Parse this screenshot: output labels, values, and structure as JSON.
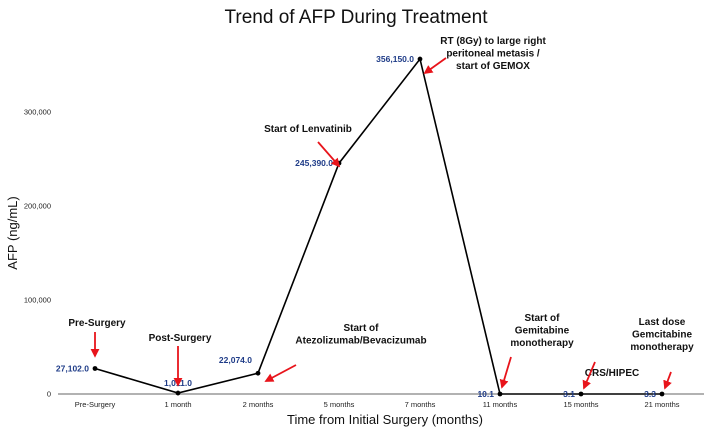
{
  "chart_data": {
    "type": "line",
    "title": "Trend of AFP During Treatment",
    "xlabel": "Time from Initial Surgery (months)",
    "ylabel": "AFP (ng/mL)",
    "ylim": [
      0,
      370000
    ],
    "yticks": [
      0,
      100000,
      200000,
      300000
    ],
    "ytick_labels": [
      "0",
      "100,000",
      "200,000",
      "300,000"
    ],
    "grid": false,
    "categories": [
      "Pre-Surgery",
      "1 month",
      "2 months",
      "5 months",
      "7 months",
      "11 months",
      "15 months",
      "21 months"
    ],
    "series": [
      {
        "name": "",
        "color": "#000000",
        "values": [
          27102.0,
          1011.0,
          22074.0,
          245390.0,
          356150.0,
          10.1,
          3.1,
          3.3
        ],
        "data_labels": [
          "27,102.0",
          "1,011.0",
          "22,074.0",
          "245,390.0",
          "356,150.0",
          "10.1",
          "3.1",
          "3.3"
        ]
      }
    ],
    "annotations": [
      {
        "index": 0,
        "lines": [
          "Pre-Surgery"
        ]
      },
      {
        "index": 1,
        "lines": [
          "Post-Surgery"
        ]
      },
      {
        "index": 2,
        "lines": [
          "Start of",
          "Atezolizumab/Bevacizumab"
        ]
      },
      {
        "index": 3,
        "lines": [
          "Start of Lenvatinib"
        ]
      },
      {
        "index": 4,
        "lines": [
          "RT (8Gy) to large right",
          "peritoneal metasis /",
          "start of GEMOX"
        ]
      },
      {
        "index": 5,
        "lines": [
          "Start of",
          "Gemitabine",
          "monotherapy"
        ]
      },
      {
        "index": 6,
        "lines": [
          "CRS/HIPEC"
        ]
      },
      {
        "index": 7,
        "lines": [
          "Last dose",
          "Gemcitabine",
          "monotherapy"
        ]
      }
    ],
    "arrow_color": "#e8141b",
    "label_color": "#1f3c88"
  }
}
